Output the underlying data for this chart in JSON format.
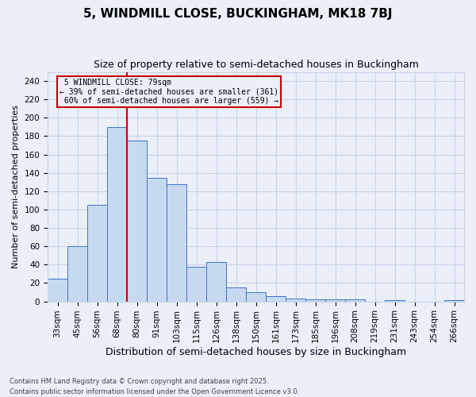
{
  "title": "5, WINDMILL CLOSE, BUCKINGHAM, MK18 7BJ",
  "subtitle": "Size of property relative to semi-detached houses in Buckingham",
  "xlabel": "Distribution of semi-detached houses by size in Buckingham",
  "ylabel": "Number of semi-detached properties",
  "categories": [
    "33sqm",
    "45sqm",
    "56sqm",
    "68sqm",
    "80sqm",
    "91sqm",
    "103sqm",
    "115sqm",
    "126sqm",
    "138sqm",
    "150sqm",
    "161sqm",
    "173sqm",
    "185sqm",
    "196sqm",
    "208sqm",
    "219sqm",
    "231sqm",
    "243sqm",
    "254sqm",
    "266sqm"
  ],
  "values": [
    25,
    60,
    105,
    190,
    175,
    135,
    128,
    38,
    43,
    15,
    10,
    6,
    3,
    2,
    2,
    2,
    0,
    1,
    0,
    0,
    1
  ],
  "bar_color": "#c6d9f0",
  "bar_edge_color": "#4472c4",
  "property_line_x": 4,
  "property_line_label": "5 WINDMILL CLOSE: 79sqm",
  "smaller_pct": "39%",
  "smaller_n": 361,
  "larger_pct": "60%",
  "larger_n": 559,
  "annotation_box_color": "#cc0000",
  "vline_color": "#cc0000",
  "grid_color": "#c8d4e8",
  "bg_color": "#eaeff8",
  "ylim": [
    0,
    250
  ],
  "yticks": [
    0,
    20,
    40,
    60,
    80,
    100,
    120,
    140,
    160,
    180,
    200,
    220,
    240
  ],
  "footer": "Contains HM Land Registry data © Crown copyright and database right 2025.\nContains public sector information licensed under the Open Government Licence v3.0.",
  "title_fontsize": 11,
  "subtitle_fontsize": 9,
  "xlabel_fontsize": 9,
  "ylabel_fontsize": 8,
  "tick_fontsize": 7.5,
  "footer_fontsize": 6
}
